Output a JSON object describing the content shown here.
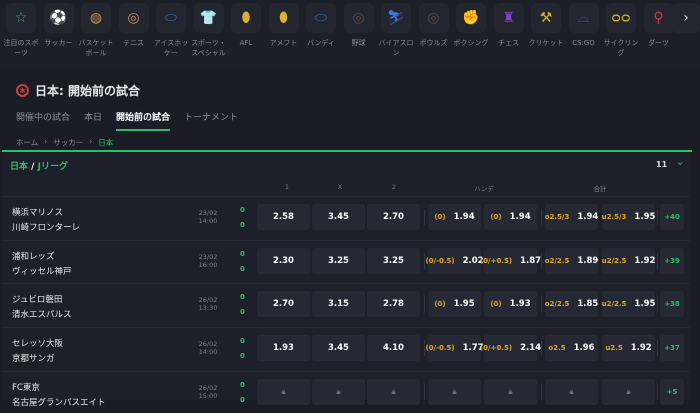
{
  "sports_bar": {
    "items": [
      {
        "label": "注目のスポーツ",
        "icon": "star-icon",
        "glyph": "☆",
        "color": "#2bbf6a"
      },
      {
        "label": "サッカー",
        "icon": "soccer-ball-icon",
        "glyph": "⚽",
        "color": "#d13b3b"
      },
      {
        "label": "バスケットボール",
        "icon": "basketball-icon",
        "glyph": "◍",
        "color": "#c9935a"
      },
      {
        "label": "テニス",
        "icon": "tennis-ball-icon",
        "glyph": "◎",
        "color": "#c9935a"
      },
      {
        "label": "アイスホッケー",
        "icon": "hockey-puck-icon",
        "glyph": "⬭",
        "color": "#3d6bb3"
      },
      {
        "label": "スポーツ・スペシャル",
        "icon": "jersey-icon",
        "glyph": "👕",
        "color": "#8a3fd6"
      },
      {
        "label": "AFL",
        "icon": "afl-ball-icon",
        "glyph": "⬮",
        "color": "#d6b22f"
      },
      {
        "label": "アメフト",
        "icon": "football-icon",
        "glyph": "⬮",
        "color": "#d6b22f"
      },
      {
        "label": "バンディ",
        "icon": "bandy-puck-icon",
        "glyph": "⬭",
        "color": "#3d6bb3"
      },
      {
        "label": "野球",
        "icon": "baseball-icon",
        "glyph": "◎",
        "color": "#5a4a44"
      },
      {
        "label": "バイアスロン",
        "icon": "biathlon-icon",
        "glyph": "⛷",
        "color": "#3d7bd6"
      },
      {
        "label": "ボウルズ",
        "icon": "bowls-icon",
        "glyph": "◎",
        "color": "#5a4a44"
      },
      {
        "label": "ボクシング",
        "icon": "boxing-glove-icon",
        "glyph": "✊",
        "color": "#d13b3b"
      },
      {
        "label": "チェス",
        "icon": "chess-icon",
        "glyph": "♜",
        "color": "#8a3fd6"
      },
      {
        "label": "クリケット",
        "icon": "cricket-bat-icon",
        "glyph": "⚒",
        "color": "#d6b22f"
      },
      {
        "label": "CS:GO",
        "icon": "gamepad-icon",
        "glyph": "⌓",
        "color": "#6a3fd6"
      },
      {
        "label": "サイクリング",
        "icon": "bicycle-icon",
        "glyph": "ᴑᴑ",
        "color": "#d6b22f"
      },
      {
        "label": "ダーツ",
        "icon": "dart-icon",
        "glyph": "⚲",
        "color": "#d13b3b"
      }
    ],
    "next_icon": "chevron-right-icon"
  },
  "header": {
    "title": "日本: 開始前の試合",
    "icon": "soccer-ball-icon"
  },
  "tabs": [
    {
      "label": "開催中の試合",
      "active": false
    },
    {
      "label": "本日",
      "active": false
    },
    {
      "label": "開始前の試合",
      "active": true
    },
    {
      "label": "トーナメント",
      "active": false
    }
  ],
  "breadcrumb": {
    "items": [
      "ホーム",
      "サッカー"
    ],
    "current": "日本",
    "sep": "›"
  },
  "league": {
    "country": "日本",
    "sep": "/",
    "name": "Jリーグ",
    "count": "11"
  },
  "columns": {
    "c1": "1",
    "cx": "X",
    "c2": "2",
    "handicap": "ハンデ",
    "total": "合計"
  },
  "matches": [
    {
      "home": "横浜マリノス",
      "away": "川崎フロンターレ",
      "date": "23/02",
      "time": "14:00",
      "score_home": "0",
      "score_away": "0",
      "odds": [
        "2.58",
        "3.45",
        "2.70"
      ],
      "handicap": [
        [
          "(0)",
          "1.94"
        ],
        [
          "(0)",
          "1.94"
        ]
      ],
      "total": [
        [
          "o2.5/3",
          "1.94"
        ],
        [
          "u2.5/3",
          "1.95"
        ]
      ],
      "more": "+40"
    },
    {
      "home": "浦和レッズ",
      "away": "ヴィッセル神戸",
      "date": "23/02",
      "time": "16:00",
      "score_home": "0",
      "score_away": "0",
      "odds": [
        "2.30",
        "3.25",
        "3.25"
      ],
      "handicap": [
        [
          "(0/-0.5)",
          "2.02"
        ],
        [
          "(0/+0.5)",
          "1.87"
        ]
      ],
      "total": [
        [
          "o2/2.5",
          "1.89"
        ],
        [
          "u2/2.5",
          "1.92"
        ]
      ],
      "more": "+39"
    },
    {
      "home": "ジュビロ磐田",
      "away": "清水エスパルス",
      "date": "26/02",
      "time": "13:30",
      "score_home": "0",
      "score_away": "0",
      "odds": [
        "2.70",
        "3.15",
        "2.78"
      ],
      "handicap": [
        [
          "(0)",
          "1.95"
        ],
        [
          "(0)",
          "1.93"
        ]
      ],
      "total": [
        [
          "o2/2.5",
          "1.85"
        ],
        [
          "u2/2.5",
          "1.95"
        ]
      ],
      "more": "+38"
    },
    {
      "home": "セレッソ大阪",
      "away": "京都サンガ",
      "date": "26/02",
      "time": "14:00",
      "score_home": "0",
      "score_away": "0",
      "odds": [
        "1.93",
        "3.45",
        "4.10"
      ],
      "handicap": [
        [
          "(0/-0.5)",
          "1.77"
        ],
        [
          "(0/+0.5)",
          "2.14"
        ]
      ],
      "total": [
        [
          "o2.5",
          "1.96"
        ],
        [
          "u2.5",
          "1.92"
        ]
      ],
      "more": "+37"
    },
    {
      "home": "FC東京",
      "away": "名古屋グランパスエイト",
      "date": "26/02",
      "time": "15:00",
      "score_home": "0",
      "score_away": "0",
      "locked": true,
      "more": "+5"
    }
  ],
  "colors": {
    "accent": "#2bbf6a",
    "handicap_label": "#e0a928",
    "background": "#1b1d26",
    "button": "#262934"
  }
}
